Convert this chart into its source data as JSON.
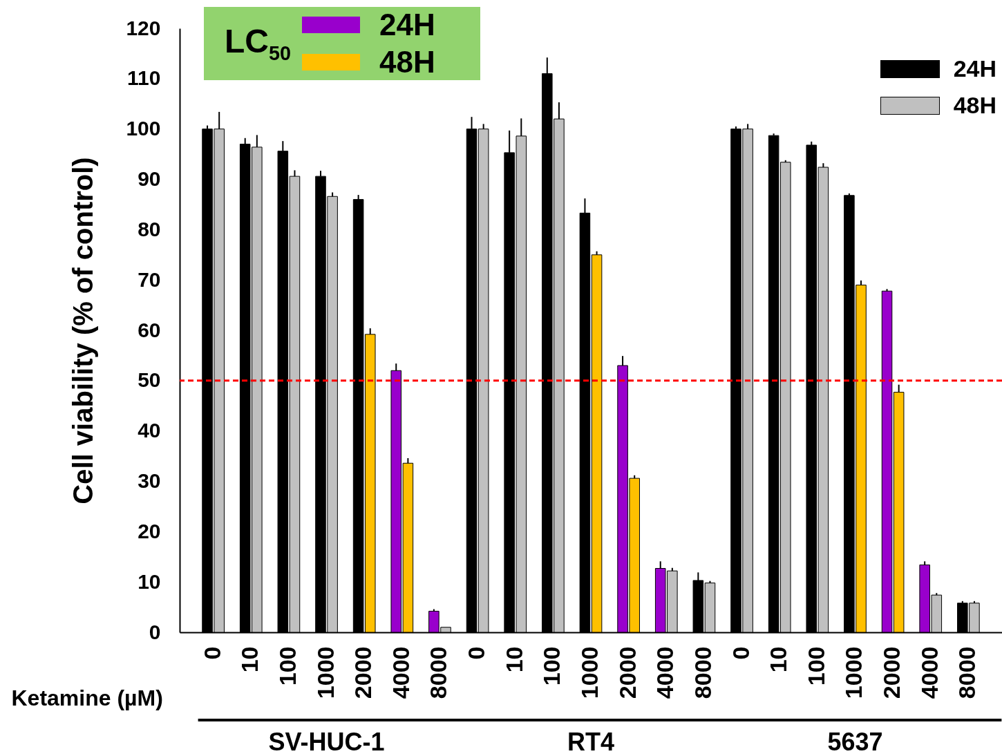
{
  "chart_data": {
    "type": "bar",
    "xlabel": "Ketamine (µM)",
    "ylabel": "Cell viability (% of control)",
    "legend_title": "LC$_{50}$",
    "categories": [
      "0",
      "10",
      "100",
      "1000",
      "2000",
      "4000",
      "8000",
      "0",
      "10",
      "100",
      "1000",
      "2000",
      "4000",
      "8000",
      "0",
      "10",
      "100",
      "1000",
      "2000",
      "4000",
      "8000"
    ],
    "series": [
      {
        "name": "24H",
        "color": "#000000",
        "colors": [
          "#000000",
          "#000000",
          "#000000",
          "#000000",
          "#000000",
          "#9900cc",
          "#9900cc",
          "#000000",
          "#000000",
          "#000000",
          "#000000",
          "#9900cc",
          "#9900cc",
          "#000000",
          "#000000",
          "#000000",
          "#000000",
          "#000000",
          "#9900cc",
          "#9900cc",
          "#000000"
        ],
        "values": [
          100,
          97,
          95.6,
          90.6,
          86,
          52,
          4.2,
          100,
          95.3,
          111,
          83.3,
          53,
          12.7,
          10.3,
          100,
          98.7,
          96.8,
          86.8,
          67.8,
          13.4,
          5.8
        ],
        "errors": [
          0.7,
          1.2,
          2,
          1.1,
          0.9,
          1.4,
          0.4,
          2.4,
          4.4,
          3.2,
          2.9,
          1.9,
          1.4,
          1.6,
          0.5,
          0.4,
          0.7,
          0.4,
          0.4,
          0.7,
          0.4
        ]
      },
      {
        "name": "48H",
        "color": "#c0c0c0",
        "colors": [
          "#c0c0c0",
          "#c0c0c0",
          "#c0c0c0",
          "#c0c0c0",
          "#ffc000",
          "#ffc000",
          "#c0c0c0",
          "#c0c0c0",
          "#c0c0c0",
          "#c0c0c0",
          "#ffc000",
          "#ffc000",
          "#c0c0c0",
          "#c0c0c0",
          "#c0c0c0",
          "#c0c0c0",
          "#c0c0c0",
          "#ffc000",
          "#ffc000",
          "#c0c0c0",
          "#c0c0c0"
        ],
        "values": [
          100,
          96.4,
          90.6,
          86.6,
          59.2,
          33.6,
          1,
          100,
          98.6,
          102,
          75,
          30.6,
          12.2,
          9.8,
          100,
          93.4,
          92.4,
          69,
          47.7,
          7.4,
          5.8
        ],
        "errors": [
          3.4,
          2.4,
          1.2,
          0.8,
          1.2,
          1,
          null,
          1,
          3.5,
          3.3,
          0.7,
          0.6,
          0.6,
          0.4,
          1,
          0.4,
          0.8,
          0.9,
          1.5,
          0.4,
          0.4
        ]
      }
    ],
    "ylim": [
      0,
      120
    ],
    "yticks": [
      0,
      10,
      20,
      30,
      40,
      50,
      60,
      70,
      80,
      90,
      100,
      110,
      120
    ],
    "grid": false,
    "legend": "top right",
    "ref_lines": [
      {
        "axis": "y",
        "value": 50,
        "color": "#ff0000",
        "line_style": "dashed"
      }
    ],
    "annotations": [
      "SV-HUC-1",
      "RT4",
      "5637"
    ]
  }
}
